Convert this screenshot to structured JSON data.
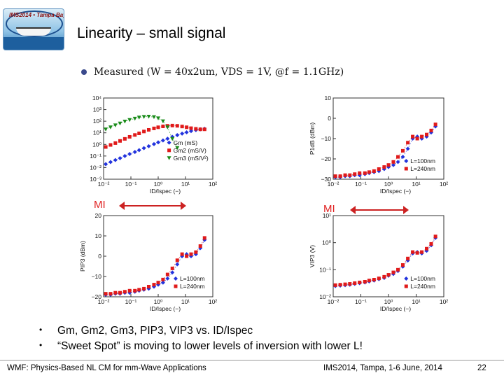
{
  "slide": {
    "title": "Linearity – small signal",
    "logo_name": "IMS2014 Tampa Bay Florida logo",
    "logo_text": "IMS2014 • Tampa Bay Florida",
    "measured_caption": "Measured (W = 40x2um, VDS = 1V, @f = 1.1GHz)",
    "mi_label": "MI",
    "bullets": [
      "Gm, Gm2, Gm3, PIP3, VIP3 vs. ID/Ispec",
      "“Sweet Spot” is moving to lower levels of inversion with lower L!"
    ],
    "footer_left": "WMF: Physics-Based NL CM for mm-Wave Applications",
    "footer_mid": "IMS2014, Tampa, 1-6 June, 2014",
    "page_number": "22",
    "colors": {
      "blue": "#2233dd",
      "red": "#e01a1a",
      "green": "#1a8c1a",
      "accent": "#cc2222"
    }
  },
  "chart_data": [
    {
      "type": "scatter",
      "id": "gm",
      "xscale": "log",
      "yscale": "log",
      "xlim": [
        0.01,
        100
      ],
      "ylim": [
        0.001,
        10000
      ],
      "xticks": [
        "10⁻²",
        "10⁻¹",
        "10⁰",
        "10¹",
        "10²"
      ],
      "yticks": [
        "10⁻³",
        "10⁻²",
        "10⁻¹",
        "10⁰",
        "10¹",
        "10²",
        "10³",
        "10⁴"
      ],
      "xlabel": "ID/Ispec (−)",
      "ylabel": "",
      "legend": [
        "Gm (mS)",
        "Gm2 (mS/V)",
        "Gm3 (mS/V²)"
      ],
      "series": [
        {
          "name": "Gm",
          "color": "blue",
          "marker": "diamond",
          "x": [
            0.012,
            0.018,
            0.027,
            0.04,
            0.06,
            0.09,
            0.14,
            0.2,
            0.3,
            0.45,
            0.7,
            1,
            1.5,
            2.2,
            3.3,
            5,
            7.5,
            11,
            16,
            24,
            35,
            50
          ],
          "y": [
            0.02,
            0.03,
            0.045,
            0.065,
            0.1,
            0.15,
            0.22,
            0.32,
            0.48,
            0.7,
            1.05,
            1.5,
            2.2,
            3.1,
            4.5,
            6.3,
            8.5,
            11,
            14,
            17,
            20,
            22
          ]
        },
        {
          "name": "Gm2",
          "color": "red",
          "marker": "square",
          "x": [
            0.012,
            0.018,
            0.027,
            0.04,
            0.06,
            0.09,
            0.14,
            0.2,
            0.3,
            0.45,
            0.7,
            1,
            1.5,
            2.2,
            3.3,
            5,
            7.5,
            11,
            16,
            24,
            35,
            50
          ],
          "y": [
            0.6,
            0.9,
            1.3,
            2,
            3,
            4.5,
            6.5,
            9,
            13,
            18,
            24,
            30,
            36,
            40,
            42,
            40,
            35,
            30,
            25,
            22,
            20,
            20
          ]
        },
        {
          "name": "Gm3",
          "color": "green",
          "marker": "triangle",
          "x": [
            0.012,
            0.018,
            0.027,
            0.04,
            0.06,
            0.09,
            0.14,
            0.2,
            0.3,
            0.45,
            0.7,
            1,
            1.5,
            2.2,
            3.3,
            5
          ],
          "y": [
            20,
            30,
            45,
            65,
            95,
            130,
            170,
            210,
            240,
            250,
            230,
            180,
            100,
            30,
            3,
            0.5
          ]
        }
      ]
    },
    {
      "type": "scatter",
      "id": "p1db",
      "xscale": "log",
      "xlim": [
        0.01,
        100
      ],
      "ylim": [
        -30,
        10
      ],
      "xticks": [
        "10⁻²",
        "10⁻¹",
        "10⁰",
        "10¹",
        "10²"
      ],
      "yticks": [
        "−30",
        "−20",
        "−10",
        "0",
        "10"
      ],
      "xlabel": "ID/Ispec (−)",
      "ylabel": "P1dB (dBm)",
      "legend": [
        "L=100nm",
        "L=240nm"
      ],
      "series": [
        {
          "name": "L=100nm",
          "color": "blue",
          "marker": "diamond",
          "x": [
            0.012,
            0.018,
            0.027,
            0.04,
            0.06,
            0.09,
            0.14,
            0.2,
            0.3,
            0.45,
            0.7,
            1,
            1.5,
            2.2,
            3.3,
            5,
            7.5,
            11,
            16,
            24,
            35,
            50
          ],
          "y": [
            -29,
            -29,
            -28.5,
            -28.5,
            -28,
            -28,
            -27.5,
            -27,
            -26.5,
            -26,
            -25,
            -24,
            -23,
            -21.5,
            -19,
            -15,
            -10,
            -9,
            -10,
            -9,
            -7,
            -4
          ]
        },
        {
          "name": "L=240nm",
          "color": "red",
          "marker": "square",
          "x": [
            0.012,
            0.018,
            0.027,
            0.04,
            0.06,
            0.09,
            0.14,
            0.2,
            0.3,
            0.45,
            0.7,
            1,
            1.5,
            2.2,
            3.3,
            5,
            7.5,
            11,
            16,
            24,
            35,
            50
          ],
          "y": [
            -28.5,
            -28.5,
            -28,
            -28,
            -27.5,
            -27,
            -27,
            -26.5,
            -26,
            -25,
            -24,
            -23,
            -21.5,
            -19,
            -16,
            -12,
            -9,
            -10,
            -9,
            -8,
            -6,
            -3
          ]
        }
      ]
    },
    {
      "type": "scatter",
      "id": "pip3",
      "xscale": "log",
      "xlim": [
        0.01,
        100
      ],
      "ylim": [
        -20,
        20
      ],
      "xticks": [
        "10⁻²",
        "10⁻¹",
        "10⁰",
        "10¹",
        "10²"
      ],
      "yticks": [
        "−20",
        "−10",
        "0",
        "10",
        "20"
      ],
      "xlabel": "ID/Ispec (−)",
      "ylabel": "PIP3 (dBm)",
      "legend": [
        "L=100nm",
        "L=240nm"
      ],
      "series": [
        {
          "name": "L=100nm",
          "color": "blue",
          "marker": "diamond",
          "x": [
            0.012,
            0.018,
            0.027,
            0.04,
            0.06,
            0.09,
            0.14,
            0.2,
            0.3,
            0.45,
            0.7,
            1,
            1.5,
            2.2,
            3.3,
            5,
            7.5,
            11,
            16,
            24,
            35,
            50
          ],
          "y": [
            -19,
            -19,
            -18.5,
            -18.5,
            -18,
            -18,
            -17.5,
            -17,
            -16.5,
            -16,
            -15,
            -14,
            -13,
            -11,
            -8,
            -4,
            0,
            1,
            0,
            1,
            4,
            8
          ]
        },
        {
          "name": "L=240nm",
          "color": "red",
          "marker": "square",
          "x": [
            0.012,
            0.018,
            0.027,
            0.04,
            0.06,
            0.09,
            0.14,
            0.2,
            0.3,
            0.45,
            0.7,
            1,
            1.5,
            2.2,
            3.3,
            5,
            7.5,
            11,
            16,
            24,
            35,
            50
          ],
          "y": [
            -18.5,
            -18.5,
            -18,
            -18,
            -17.5,
            -17,
            -17,
            -16.5,
            -16,
            -15,
            -14,
            -13,
            -11.5,
            -9,
            -6,
            -2,
            1,
            0,
            1,
            2,
            5,
            9
          ]
        }
      ]
    },
    {
      "type": "scatter",
      "id": "vip3",
      "xscale": "log",
      "yscale": "log",
      "xlim": [
        0.01,
        100
      ],
      "ylim": [
        0.01,
        10
      ],
      "xticks": [
        "10⁻²",
        "10⁻¹",
        "10⁰",
        "10¹",
        "10²"
      ],
      "yticks": [
        "10⁻²",
        "10⁻¹",
        "10⁰",
        "10¹"
      ],
      "xlabel": "ID/Ispec (−)",
      "ylabel": "VIP3 (V)",
      "legend": [
        "L=100nm",
        "L=240nm"
      ],
      "series": [
        {
          "name": "L=100nm",
          "color": "blue",
          "marker": "diamond",
          "x": [
            0.012,
            0.018,
            0.027,
            0.04,
            0.06,
            0.09,
            0.14,
            0.2,
            0.3,
            0.45,
            0.7,
            1,
            1.5,
            2.2,
            3.3,
            5,
            7.5,
            11,
            16,
            24,
            35,
            50
          ],
          "y": [
            0.025,
            0.026,
            0.027,
            0.028,
            0.03,
            0.032,
            0.034,
            0.037,
            0.04,
            0.045,
            0.05,
            0.06,
            0.07,
            0.09,
            0.13,
            0.22,
            0.4,
            0.45,
            0.4,
            0.5,
            0.8,
            1.5
          ]
        },
        {
          "name": "L=240nm",
          "color": "red",
          "marker": "square",
          "x": [
            0.012,
            0.018,
            0.027,
            0.04,
            0.06,
            0.09,
            0.14,
            0.2,
            0.3,
            0.45,
            0.7,
            1,
            1.5,
            2.2,
            3.3,
            5,
            7.5,
            11,
            16,
            24,
            35,
            50
          ],
          "y": [
            0.027,
            0.028,
            0.029,
            0.03,
            0.032,
            0.034,
            0.036,
            0.04,
            0.043,
            0.048,
            0.055,
            0.065,
            0.08,
            0.1,
            0.15,
            0.26,
            0.45,
            0.42,
            0.45,
            0.6,
            0.9,
            1.7
          ]
        }
      ]
    }
  ]
}
